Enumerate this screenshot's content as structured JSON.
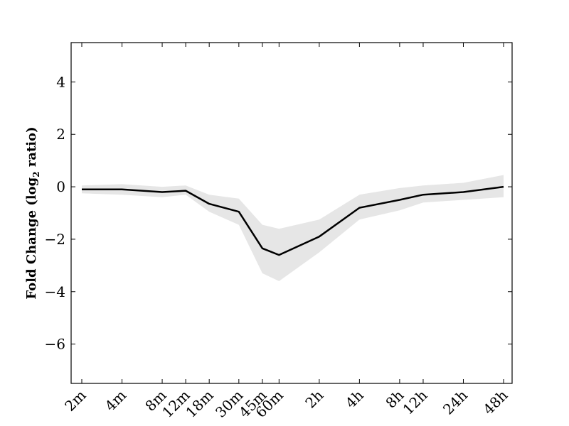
{
  "chart_data": {
    "type": "line",
    "xlabel": "",
    "ylabel": "Fold Change (log",
    "ylabel_sub": "2",
    "ylabel_suffix": " ratio)",
    "ylim": [
      -7.5,
      5.5
    ],
    "yticks": [
      4,
      2,
      0,
      -2,
      -4,
      -6
    ],
    "ytick_labels": [
      "4",
      "2",
      "0",
      "−2",
      "−4",
      "−6"
    ],
    "x_minutes": [
      2,
      4,
      8,
      12,
      18,
      30,
      45,
      60,
      120,
      240,
      480,
      720,
      1440,
      2880
    ],
    "x_tick_labels": [
      "2m",
      "4m",
      "8m",
      "12m",
      "18m",
      "30m",
      "45m",
      "60m",
      "2h",
      "4h",
      "8h",
      "12h",
      "24h",
      "48h"
    ],
    "x_scale": "log",
    "grid": false,
    "series": [
      {
        "values": [
          -0.1,
          -0.1,
          -0.2,
          -0.15,
          -0.65,
          -0.95,
          -2.35,
          -2.6,
          -1.9,
          -0.8,
          -0.5,
          -0.3,
          -0.2,
          0.0
        ],
        "band_upper": [
          0.05,
          0.1,
          0.0,
          0.05,
          -0.3,
          -0.45,
          -1.45,
          -1.6,
          -1.25,
          -0.3,
          -0.05,
          0.05,
          0.15,
          0.45
        ],
        "band_lower": [
          -0.25,
          -0.3,
          -0.4,
          -0.3,
          -0.95,
          -1.45,
          -3.3,
          -3.6,
          -2.5,
          -1.25,
          -0.9,
          -0.6,
          -0.5,
          -0.4
        ],
        "line_color": "#000000",
        "band_color": "#e6e6e6"
      }
    ]
  }
}
